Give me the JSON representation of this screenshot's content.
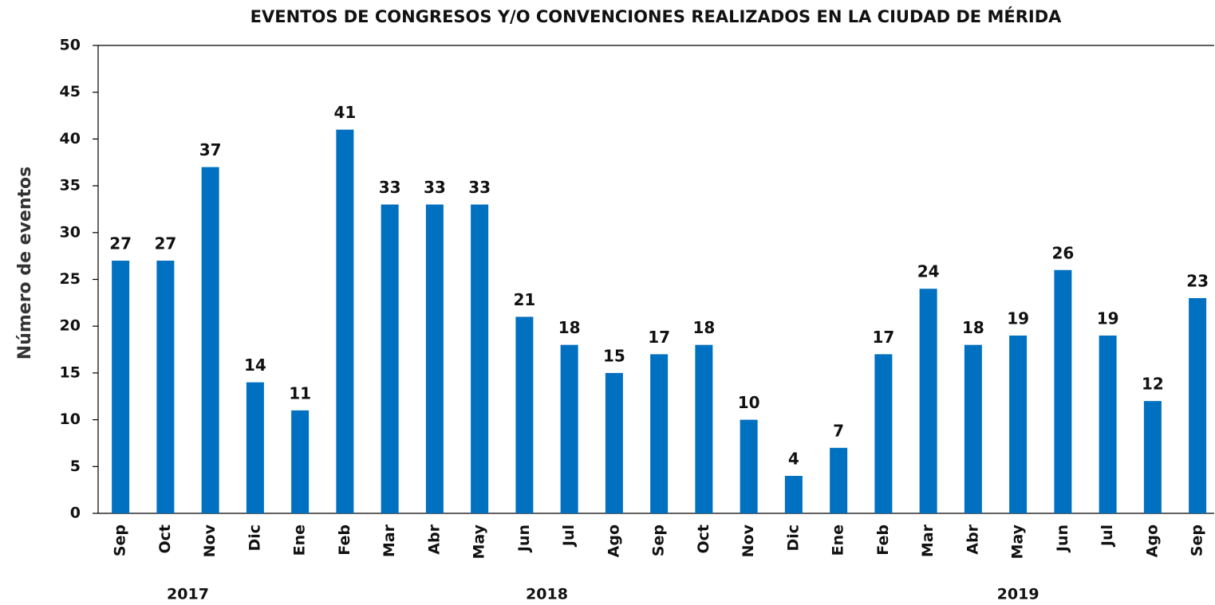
{
  "chart_data": {
    "type": "bar",
    "title": "EVENTOS DE CONGRESOS Y/O CONVENCIONES REALIZADOS EN LA CIUDAD DE MÉRIDA",
    "y_label": "Número de eventos",
    "categories": [
      "Sep",
      "Oct",
      "Nov",
      "Dic",
      "Ene",
      "Feb",
      "Mar",
      "Abr",
      "May",
      "Jun",
      "Jul",
      "Ago",
      "Sep",
      "Oct",
      "Nov",
      "Dic",
      "Ene",
      "Feb",
      "Mar",
      "Abr",
      "May",
      "Jun",
      "Jul",
      "Ago",
      "Sep"
    ],
    "values": [
      27,
      27,
      37,
      14,
      11,
      41,
      33,
      33,
      33,
      21,
      18,
      15,
      17,
      18,
      10,
      4,
      7,
      17,
      24,
      18,
      19,
      26,
      19,
      12,
      23
    ],
    "groups": [
      {
        "label": "2017",
        "count": 4
      },
      {
        "label": "2018",
        "count": 12
      },
      {
        "label": "2019",
        "count": 9
      }
    ],
    "color": "#0070c0",
    "ylim": [
      0,
      50
    ],
    "yticks": [
      0,
      5,
      10,
      15,
      20,
      25,
      30,
      35,
      40,
      45,
      50
    ],
    "grid": false
  }
}
